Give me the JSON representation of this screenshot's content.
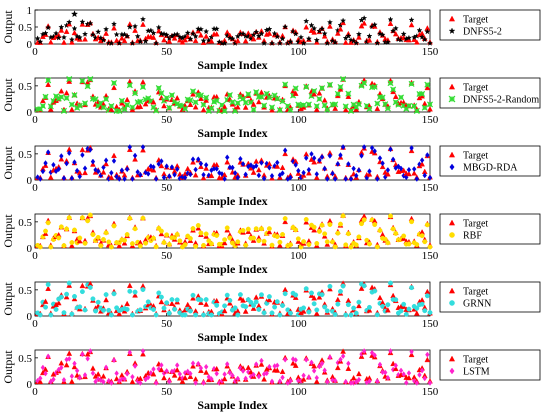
{
  "chart_data": [
    {
      "type": "scatter",
      "xlabel": "Sample Index",
      "ylabel": "Output",
      "xlim": [
        0,
        150
      ],
      "ylim": [
        0,
        1
      ],
      "xticks": [
        "0",
        "50",
        "100",
        "150"
      ],
      "yticks": [
        "0",
        "0.5",
        "1"
      ],
      "grid": false,
      "legend_position": "right",
      "series": [
        {
          "name": "Target",
          "color": "#ff0000",
          "marker": "triangle"
        },
        {
          "name": "DNFS5-2",
          "color": "#000000",
          "marker": "star"
        }
      ]
    },
    {
      "type": "scatter",
      "xlabel": "Sample Index",
      "ylabel": "Output",
      "xlim": [
        0,
        150
      ],
      "ylim": [
        0,
        0.65
      ],
      "xticks": [
        "0",
        "50",
        "100",
        "150"
      ],
      "yticks": [
        "0",
        "0.5"
      ],
      "grid": false,
      "legend_position": "right",
      "series": [
        {
          "name": "Target",
          "color": "#ff0000",
          "marker": "triangle"
        },
        {
          "name": "DNFS5-2-Random",
          "color": "#33dd33",
          "marker": "x-square"
        }
      ]
    },
    {
      "type": "scatter",
      "xlabel": "Sample Index",
      "ylabel": "Output",
      "xlim": [
        0,
        150
      ],
      "ylim": [
        0,
        0.65
      ],
      "xticks": [
        "0",
        "50",
        "100",
        "150"
      ],
      "yticks": [
        "0",
        "0.5"
      ],
      "grid": false,
      "legend_position": "right",
      "series": [
        {
          "name": "Target",
          "color": "#ff0000",
          "marker": "triangle"
        },
        {
          "name": "MBGD-RDA",
          "color": "#0000dd",
          "marker": "diamond"
        }
      ]
    },
    {
      "type": "scatter",
      "xlabel": "Sample Index",
      "ylabel": "Output",
      "xlim": [
        0,
        150
      ],
      "ylim": [
        0,
        0.65
      ],
      "xticks": [
        "0",
        "50",
        "100",
        "150"
      ],
      "yticks": [
        "0",
        "0.5"
      ],
      "grid": false,
      "legend_position": "right",
      "series": [
        {
          "name": "Target",
          "color": "#ff0000",
          "marker": "triangle"
        },
        {
          "name": "RBF",
          "color": "#ffdd00",
          "marker": "circle"
        }
      ]
    },
    {
      "type": "scatter",
      "xlabel": "Sample Index",
      "ylabel": "Output",
      "xlim": [
        0,
        150
      ],
      "ylim": [
        0,
        0.65
      ],
      "xticks": [
        "0",
        "50",
        "100",
        "150"
      ],
      "yticks": [
        "0",
        "0.5"
      ],
      "grid": false,
      "legend_position": "right",
      "series": [
        {
          "name": "Target",
          "color": "#ff0000",
          "marker": "triangle"
        },
        {
          "name": "GRNN",
          "color": "#33dddd",
          "marker": "circle"
        }
      ]
    },
    {
      "type": "scatter",
      "xlabel": "Sample Index",
      "ylabel": "Output",
      "xlim": [
        0,
        150
      ],
      "ylim": [
        0,
        0.65
      ],
      "xticks": [
        "0",
        "50",
        "100",
        "150"
      ],
      "yticks": [
        "0",
        "0.5"
      ],
      "grid": false,
      "legend_position": "right",
      "series": [
        {
          "name": "Target",
          "color": "#ff0000",
          "marker": "triangle"
        },
        {
          "name": "LSTM",
          "color": "#ff22cc",
          "marker": "diamond"
        }
      ]
    }
  ]
}
